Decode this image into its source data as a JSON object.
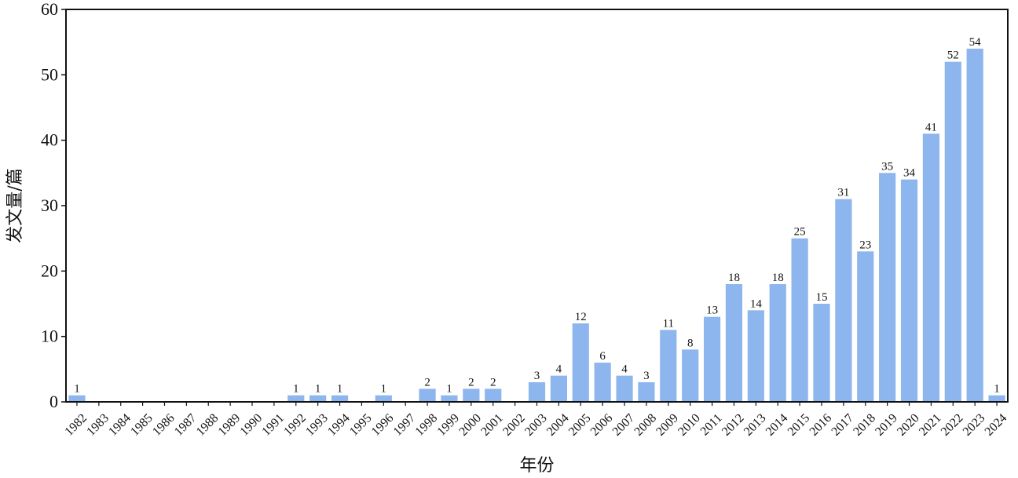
{
  "chart_data": {
    "type": "bar",
    "categories": [
      "1982",
      "1983",
      "1984",
      "1985",
      "1986",
      "1987",
      "1988",
      "1989",
      "1990",
      "1991",
      "1992",
      "1993",
      "1994",
      "1995",
      "1996",
      "1997",
      "1998",
      "1999",
      "2000",
      "2001",
      "2002",
      "2003",
      "2004",
      "2005",
      "2006",
      "2007",
      "2008",
      "2009",
      "2010",
      "2011",
      "2012",
      "2013",
      "2014",
      "2015",
      "2016",
      "2017",
      "2018",
      "2019",
      "2020",
      "2021",
      "2022",
      "2023",
      "2024"
    ],
    "values": [
      1,
      0,
      0,
      0,
      0,
      0,
      0,
      0,
      0,
      0,
      1,
      1,
      1,
      0,
      1,
      0,
      2,
      1,
      2,
      2,
      0,
      3,
      4,
      12,
      6,
      4,
      3,
      11,
      8,
      13,
      18,
      14,
      18,
      25,
      15,
      31,
      23,
      35,
      34,
      41,
      52,
      54,
      1
    ],
    "xlabel": "年份",
    "ylabel": "发文量/篇",
    "ylim": [
      0,
      60
    ],
    "yticks": [
      0,
      10,
      20,
      30,
      40,
      50,
      60
    ],
    "grid": false,
    "bar_color": "#8db6ee"
  }
}
